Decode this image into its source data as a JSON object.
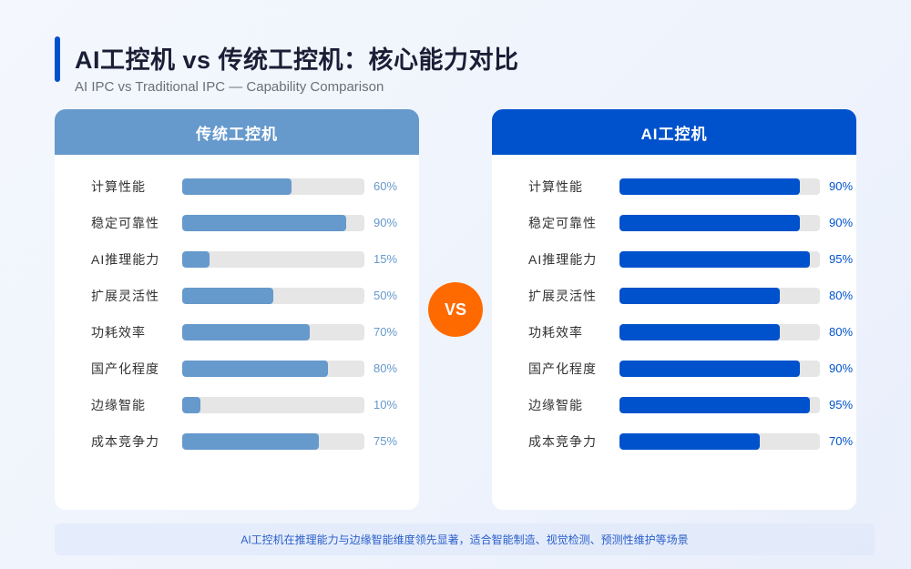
{
  "header": {
    "title": "AI工控机 vs 传统工控机：核心能力对比",
    "subtitle": "AI IPC vs Traditional IPC — Capability Comparison"
  },
  "colors": {
    "traditional": "#6699cc",
    "ai": "#0052cc",
    "vs_badge": "#ff6a00",
    "track": "#e6e6e6"
  },
  "panels": {
    "traditional": {
      "title": "传统工控机",
      "rows": [
        {
          "label": "计算性能",
          "value": 60,
          "pct": "60%"
        },
        {
          "label": "稳定可靠性",
          "value": 90,
          "pct": "90%"
        },
        {
          "label": "AI推理能力",
          "value": 15,
          "pct": "15%"
        },
        {
          "label": "扩展灵活性",
          "value": 50,
          "pct": "50%"
        },
        {
          "label": "功耗效率",
          "value": 70,
          "pct": "70%"
        },
        {
          "label": "国产化程度",
          "value": 80,
          "pct": "80%"
        },
        {
          "label": "边缘智能",
          "value": 10,
          "pct": "10%"
        },
        {
          "label": "成本竞争力",
          "value": 75,
          "pct": "75%"
        }
      ]
    },
    "ai": {
      "title": "AI工控机",
      "rows": [
        {
          "label": "计算性能",
          "value": 90,
          "pct": "90%"
        },
        {
          "label": "稳定可靠性",
          "value": 90,
          "pct": "90%"
        },
        {
          "label": "AI推理能力",
          "value": 95,
          "pct": "95%"
        },
        {
          "label": "扩展灵活性",
          "value": 80,
          "pct": "80%"
        },
        {
          "label": "功耗效率",
          "value": 80,
          "pct": "80%"
        },
        {
          "label": "国产化程度",
          "value": 90,
          "pct": "90%"
        },
        {
          "label": "边缘智能",
          "value": 95,
          "pct": "95%"
        },
        {
          "label": "成本竞争力",
          "value": 70,
          "pct": "70%"
        }
      ]
    }
  },
  "vs_label": "VS",
  "footer": {
    "note": "AI工控机在推理能力与边缘智能维度领先显著，适合智能制造、视觉检测、预测性维护等场景"
  },
  "chart_data": {
    "type": "bar",
    "orientation": "horizontal",
    "title": "AI工控机 vs 传统工控机：核心能力对比",
    "subtitle": "AI IPC vs Traditional IPC — Capability Comparison",
    "categories": [
      "计算性能",
      "稳定可靠性",
      "AI推理能力",
      "扩展灵活性",
      "功耗效率",
      "国产化程度",
      "边缘智能",
      "成本竞争力"
    ],
    "series": [
      {
        "name": "传统工控机",
        "values": [
          60,
          90,
          15,
          50,
          70,
          80,
          10,
          75
        ],
        "color": "#6699cc"
      },
      {
        "name": "AI工控机",
        "values": [
          90,
          90,
          95,
          80,
          80,
          90,
          95,
          70
        ],
        "color": "#0052cc"
      }
    ],
    "xlabel": "",
    "ylabel": "",
    "xlim": [
      0,
      100
    ],
    "unit": "%",
    "grid": false,
    "layout": "two side-by-side panels separated by VS badge",
    "annotation": "AI工控机在推理能力与边缘智能维度领先显著，适合智能制造、视觉检测、预测性维护等场景"
  }
}
